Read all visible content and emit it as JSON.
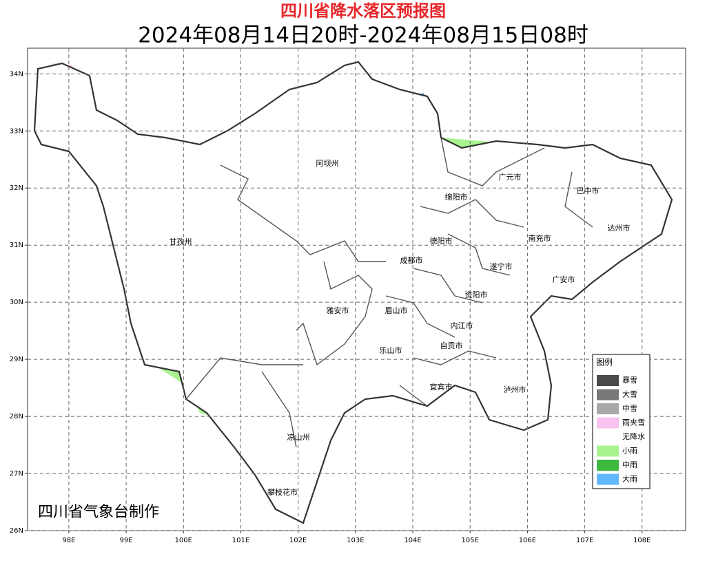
{
  "header": {
    "title": "四川省降水落区预报图",
    "subtitle": "2024年08月14日20时-2024年08月15日08时"
  },
  "map": {
    "xlim": [
      97.28,
      108.76
    ],
    "ylim": [
      26,
      34.45
    ],
    "lon_ticks": [
      {
        "value": 98,
        "label": "98E"
      },
      {
        "value": 99,
        "label": "99E"
      },
      {
        "value": 100,
        "label": "100E"
      },
      {
        "value": 101,
        "label": "101E"
      },
      {
        "value": 102,
        "label": "102E"
      },
      {
        "value": 103,
        "label": "103E"
      },
      {
        "value": 104,
        "label": "104E"
      },
      {
        "value": 105,
        "label": "105E"
      },
      {
        "value": 106,
        "label": "106E"
      },
      {
        "value": 107,
        "label": "107E"
      },
      {
        "value": 108,
        "label": "108E"
      }
    ],
    "lat_ticks": [
      {
        "value": 26,
        "label": "26N"
      },
      {
        "value": 27,
        "label": "27N"
      },
      {
        "value": 28,
        "label": "28N"
      },
      {
        "value": 29,
        "label": "29N"
      },
      {
        "value": 30,
        "label": "30N"
      },
      {
        "value": 31,
        "label": "31N"
      },
      {
        "value": 32,
        "label": "32N"
      },
      {
        "value": 33,
        "label": "33N"
      },
      {
        "value": 34,
        "label": "34N"
      }
    ],
    "grid": true,
    "cities": [
      "阿坝州",
      "广元市",
      "巴中市",
      "绵阳市",
      "达州市",
      "甘孜州",
      "德阳市",
      "南充市",
      "成都市",
      "遂宁市",
      "广安市",
      "资阳市",
      "雅安市",
      "眉山市",
      "内江市",
      "自贡市",
      "乐山市",
      "宜宾市",
      "泸州市",
      "凉山州",
      "攀枝花市"
    ]
  },
  "legend": {
    "title": "图例",
    "items": [
      {
        "label": "暴雪",
        "color": "#4a4a4a"
      },
      {
        "label": "大雪",
        "color": "#787878"
      },
      {
        "label": "中雪",
        "color": "#a8a8a8"
      },
      {
        "label": "雨夹雪",
        "color": "#f9c2f1"
      },
      {
        "label": "无降水",
        "color": "#ffffff"
      },
      {
        "label": "小雨",
        "color": "#a8f28f"
      },
      {
        "label": "中雨",
        "color": "#3dba3d"
      },
      {
        "label": "大雨",
        "color": "#61b8ff"
      }
    ]
  },
  "footer": {
    "credit": "四川省气象台制作"
  }
}
